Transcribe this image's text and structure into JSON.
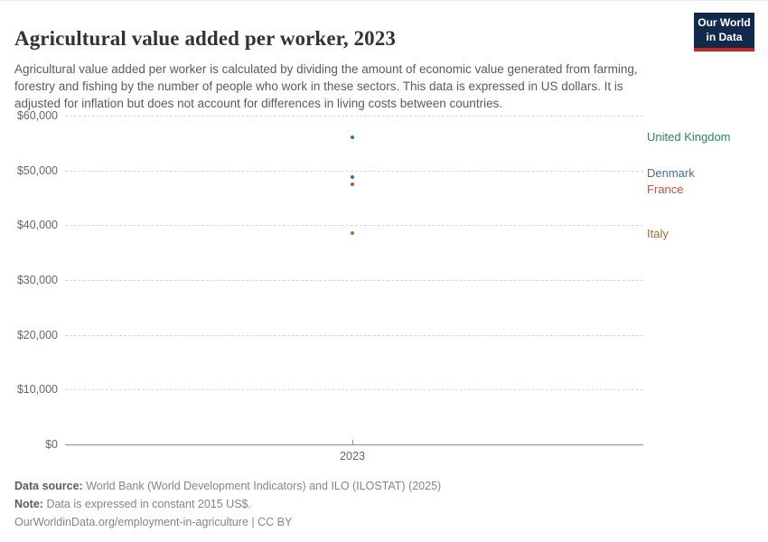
{
  "header": {
    "title": "Agricultural value added per worker, 2023",
    "subtitle": "Agricultural value added per worker is calculated by dividing the amount of economic value generated from farming, forestry and fishing by the number of people who work in these sectors. This data is expressed in US dollars. It is adjusted for inflation but does not account for differences in living costs between countries.",
    "logo": {
      "line1": "Our World",
      "line2": "in Data",
      "bg_color": "#12294e",
      "accent_color": "#c5281c",
      "text_color": "#ffffff"
    }
  },
  "chart_data": {
    "type": "scatter",
    "title": "Agricultural value added per worker, 2023",
    "x": [
      2023
    ],
    "xticks": [
      2023
    ],
    "xlabel": "",
    "ylabel": "",
    "ylim": [
      0,
      60000
    ],
    "yticks": [
      0,
      10000,
      20000,
      30000,
      40000,
      50000,
      60000
    ],
    "ytick_prefix": "$",
    "grid": "horizontal dashed",
    "legend_position": "right-edge entity labels",
    "series": [
      {
        "name": "United Kingdom",
        "values": [
          56100
        ],
        "color": "#2C8465",
        "label_dy": 0
      },
      {
        "name": "Denmark",
        "values": [
          48800
        ],
        "color": "#4C6A9C",
        "label_dy": -4
      },
      {
        "name": "France",
        "values": [
          47400
        ],
        "color": "#C4532E",
        "label_dy": 6
      },
      {
        "name": "Italy",
        "values": [
          38600
        ],
        "color": "#A86E2D",
        "label_dy": 1
      }
    ]
  },
  "footer": {
    "source_label": "Data source:",
    "source_text": "World Bank (World Development Indicators) and ILO (ILOSTAT) (2025)",
    "note_label": "Note:",
    "note_text": "Data is expressed in constant 2015 US$.",
    "citation_url": "OurWorldinData.org/employment-in-agriculture",
    "citation_separator": "|",
    "citation_license": "CC BY"
  }
}
